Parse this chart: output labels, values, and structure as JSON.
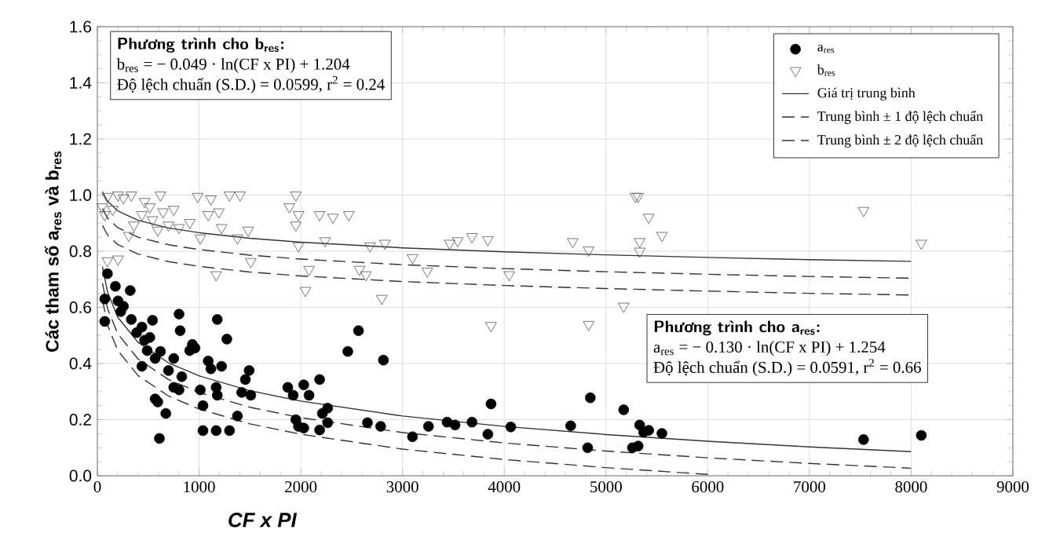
{
  "chart_data": {
    "type": "scatter",
    "xlabel": "CF x PI",
    "ylabel": "Các tham số a$_{res}$ và b$_{res}$",
    "xlim": [
      0,
      9000
    ],
    "xticks": [
      0,
      1000,
      2000,
      3000,
      4000,
      5000,
      6000,
      7000,
      8000,
      9000
    ],
    "ylim": [
      0,
      1.6
    ],
    "yticks": [
      {
        "value": 0,
        "label": "0.0"
      },
      {
        "value": 0.2,
        "label": "0.2"
      },
      {
        "value": 0.4,
        "label": "0.4"
      },
      {
        "value": 0.6,
        "label": "0.6"
      },
      {
        "value": 0.8,
        "label": "0.8"
      },
      {
        "value": 1.0,
        "label": "1.0"
      },
      {
        "value": 1.2,
        "label": "1.2"
      },
      {
        "value": 1.4,
        "label": "1.4"
      },
      {
        "value": 1.6,
        "label": "1.6"
      }
    ],
    "grid": true,
    "legend": "top right",
    "annotations": [
      "Phương trình cho b$_{res}$:",
      "b$_{res}$ = − 0.049 · ln(CF x PI) + 1.204",
      "Độ lệch chuẩn (S.D.) = 0.0599, r$^{2}$ = 0.24",
      "Phương trình cho a$_{res}$:",
      "a$_{res}$ = − 0.130 · ln(CF x PI) + 1.254",
      "Độ lệch chuẩn (S.D.) = 0.0591, r$^{2}$ = 0.66"
    ],
    "series": [
      {
        "name": "a$_{res}$",
        "marker": "circle",
        "color": "#000000",
        "x": [
          99,
          73,
          73,
          177,
          203,
          256,
          230,
          323,
          334,
          386,
          438,
          464,
          516,
          542,
          438,
          490,
          568,
          620,
          568,
          594,
          673,
          610,
          751,
          699,
          803,
          814,
          830,
          751,
          803,
          934,
          960,
          908,
          1012,
          1038,
          1038,
          1090,
          1116,
          1179,
          1221,
          1168,
          1179,
          1168,
          1273,
          1299,
          1377,
          1419,
          1455,
          1492,
          1508,
          1872,
          1925,
          2029,
          2081,
          2185,
          1951,
          1977,
          2029,
          2212,
          2264,
          2185,
          2264,
          2462,
          2567,
          2812,
          2655,
          2785,
          3098,
          3255,
          3438,
          3516,
          3683,
          3839,
          3870,
          4064,
          4653,
          4820,
          4846,
          5174,
          5331,
          5316,
          5420,
          5550,
          5370,
          5260,
          7532,
          8100
        ],
        "values": [
          0.72,
          0.63,
          0.55,
          0.675,
          0.623,
          0.604,
          0.585,
          0.66,
          0.557,
          0.51,
          0.53,
          0.483,
          0.493,
          0.554,
          0.39,
          0.446,
          0.418,
          0.443,
          0.274,
          0.263,
          0.222,
          0.133,
          0.418,
          0.375,
          0.576,
          0.517,
          0.353,
          0.315,
          0.306,
          0.468,
          0.455,
          0.446,
          0.306,
          0.25,
          0.161,
          0.409,
          0.381,
          0.557,
          0.39,
          0.315,
          0.287,
          0.161,
          0.487,
          0.161,
          0.213,
          0.297,
          0.343,
          0.375,
          0.287,
          0.315,
          0.287,
          0.324,
          0.287,
          0.343,
          0.2,
          0.176,
          0.17,
          0.222,
          0.241,
          0.163,
          0.189,
          0.443,
          0.517,
          0.412,
          0.189,
          0.176,
          0.139,
          0.176,
          0.191,
          0.181,
          0.191,
          0.148,
          0.256,
          0.174,
          0.178,
          0.1,
          0.278,
          0.235,
          0.181,
          0.106,
          0.162,
          0.151,
          0.155,
          0.1,
          0.129,
          0.144
        ]
      },
      {
        "name": "b$_{res}$",
        "marker": "triangle",
        "color": "#555555",
        "x": [
          47,
          99,
          203,
          334,
          256,
          73,
          151,
          464,
          516,
          438,
          620,
          542,
          646,
          751,
          594,
          699,
          803,
          908,
          986,
          1116,
          1012,
          1090,
          1194,
          1299,
          1403,
          1221,
          1377,
          1482,
          308,
          360,
          203,
          1951,
          1888,
          1977,
          1951,
          2185,
          2316,
          2472,
          1977,
          2238,
          2681,
          2827,
          3464,
          3542,
          3683,
          3839,
          4673,
          4830,
          5290,
          99,
          1168,
          1508,
          2081,
          2045,
          2577,
          2640,
          2796,
          3098,
          3244,
          4049,
          3870,
          4830,
          5174,
          5316,
          5420,
          5550,
          5331,
          5331,
          7532,
          8100
        ],
        "values": [
          0.958,
          0.995,
          1.0,
          1.0,
          0.99,
          0.93,
          0.949,
          0.977,
          0.958,
          0.93,
          1.0,
          0.912,
          0.94,
          0.949,
          0.875,
          0.893,
          0.884,
          0.902,
          0.995,
          0.986,
          0.847,
          0.93,
          0.94,
          1.0,
          1.0,
          0.884,
          0.847,
          0.875,
          0.856,
          0.893,
          0.772,
          1.0,
          0.958,
          0.93,
          0.893,
          0.93,
          0.921,
          0.93,
          0.819,
          0.837,
          0.819,
          0.828,
          0.828,
          0.837,
          0.852,
          0.841,
          0.834,
          0.804,
          0.995,
          0.766,
          0.716,
          0.763,
          0.735,
          0.66,
          0.735,
          0.716,
          0.632,
          0.777,
          0.729,
          0.716,
          0.535,
          0.539,
          0.604,
          0.995,
          0.921,
          0.856,
          0.834,
          0.8,
          0.945,
          0.828
        ]
      },
      {
        "name": "Giá trị trung bình",
        "type": "line",
        "line_style": "solid",
        "color": "#333333",
        "x": [
          50,
          100,
          200,
          400,
          700,
          1000,
          1500,
          2000,
          3000,
          4000,
          5000,
          6000,
          7000,
          8000
        ],
        "values": [
          0.745,
          0.655,
          0.565,
          0.475,
          0.402,
          0.356,
          0.303,
          0.266,
          0.213,
          0.176,
          0.147,
          0.123,
          0.103,
          0.086
        ]
      },
      {
        "name": "Trung bình ± 1 độ lệch chuẩn",
        "type": "line",
        "line_style": "dashed",
        "color": "#333333",
        "x": [
          50,
          100,
          200,
          400,
          700,
          1000,
          1500,
          2000,
          3000,
          4000,
          5000,
          6000,
          7000,
          8000
        ],
        "values": [
          0.686,
          0.596,
          0.506,
          0.416,
          0.343,
          0.297,
          0.244,
          0.207,
          0.154,
          0.117,
          0.088,
          0.064,
          0.044,
          0.027
        ]
      },
      {
        "name": "Trung bình ± 2 độ lệch chuẩn",
        "type": "line",
        "line_style": "dashed",
        "color": "#333333",
        "x": [
          50,
          100,
          200,
          400,
          700,
          1000,
          1500,
          2000,
          3000,
          4000,
          5000,
          6000
        ],
        "values": [
          0.627,
          0.537,
          0.447,
          0.357,
          0.284,
          0.238,
          0.185,
          0.148,
          0.095,
          0.058,
          0.029,
          0.005
        ]
      },
      {
        "type": "line",
        "line_style": "solid",
        "color": "#333333",
        "x": [
          50,
          100,
          200,
          400,
          700,
          1000,
          1500,
          2000,
          3000,
          4000,
          5000,
          6000,
          7000,
          8000
        ],
        "values": [
          1.012,
          0.978,
          0.944,
          0.91,
          0.883,
          0.866,
          0.846,
          0.832,
          0.812,
          0.798,
          0.787,
          0.778,
          0.77,
          0.764
        ]
      },
      {
        "type": "line",
        "line_style": "dashed",
        "color": "#333333",
        "x": [
          50,
          100,
          200,
          400,
          700,
          1000,
          1500,
          2000,
          3000,
          4000,
          5000,
          6000,
          7000,
          8000
        ],
        "values": [
          0.952,
          0.918,
          0.884,
          0.85,
          0.823,
          0.806,
          0.786,
          0.772,
          0.752,
          0.738,
          0.727,
          0.718,
          0.71,
          0.704
        ]
      },
      {
        "type": "line",
        "line_style": "dashed",
        "color": "#333333",
        "x": [
          50,
          100,
          200,
          400,
          700,
          1000,
          1500,
          2000,
          3000,
          4000,
          5000,
          6000,
          7000,
          8000
        ],
        "values": [
          0.892,
          0.858,
          0.824,
          0.79,
          0.763,
          0.746,
          0.726,
          0.712,
          0.692,
          0.678,
          0.667,
          0.658,
          0.65,
          0.644
        ]
      }
    ]
  }
}
